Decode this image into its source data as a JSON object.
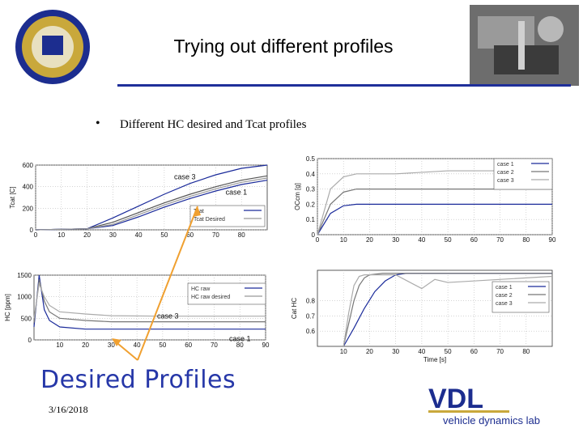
{
  "slide": {
    "title": "Trying out different profiles",
    "bullet": "Different HC desired and Tcat profiles",
    "date": "3/16/2018",
    "callout": "Desired Profiles",
    "logo_text": "VDL",
    "logo_subtext": "vehicle dynamics lab",
    "colors": {
      "accent": "#1f2f9a",
      "callout": "#2637a8",
      "arrow": "#f0a030",
      "case1": "#1a2a9a",
      "case2": "#777777",
      "case3": "#aaaaaa"
    }
  },
  "chart_data": [
    {
      "id": "tcat",
      "type": "line",
      "ylabel": "Tcat [C]",
      "xlim": [
        0,
        90
      ],
      "ylim": [
        0,
        600
      ],
      "xticks": [
        "0",
        "10",
        "20",
        "30",
        "40",
        "50",
        "60",
        "70",
        "80"
      ],
      "yticks": [
        "0",
        "200",
        "400",
        "600"
      ],
      "legend": [
        "Tcat",
        "Tcat Desired"
      ],
      "annotations": [
        {
          "text": "case 3",
          "x": 58,
          "y": 470
        },
        {
          "text": "case 1",
          "x": 78,
          "y": 325
        }
      ],
      "series": [
        {
          "name": "case 3",
          "color": "#1a2a9a",
          "x": [
            0,
            20,
            30,
            40,
            50,
            60,
            70,
            80,
            90
          ],
          "y": [
            0,
            10,
            110,
            220,
            330,
            430,
            510,
            570,
            600
          ]
        },
        {
          "name": "case 2",
          "color": "#555555",
          "x": [
            0,
            20,
            30,
            40,
            50,
            60,
            70,
            80,
            90
          ],
          "y": [
            0,
            10,
            70,
            160,
            250,
            330,
            400,
            460,
            500
          ]
        },
        {
          "name": "case 1",
          "color": "#1a2a9a",
          "x": [
            0,
            20,
            30,
            40,
            50,
            60,
            70,
            80,
            90
          ],
          "y": [
            0,
            10,
            40,
            120,
            210,
            290,
            360,
            420,
            460
          ]
        },
        {
          "name": "desired",
          "color": "#999999",
          "x": [
            0,
            20,
            30,
            40,
            50,
            60,
            70,
            80,
            90
          ],
          "y": [
            0,
            10,
            50,
            140,
            230,
            310,
            380,
            440,
            480
          ]
        }
      ]
    },
    {
      "id": "hc",
      "type": "line",
      "ylabel": "HC [ppm]",
      "xlim": [
        0,
        90
      ],
      "ylim": [
        0,
        1500
      ],
      "xticks": [
        "10",
        "20",
        "30",
        "40",
        "50",
        "60",
        "70",
        "80",
        "90"
      ],
      "yticks": [
        "0",
        "500",
        "1000",
        "1500"
      ],
      "legend": [
        "HC raw",
        "HC raw desired"
      ],
      "annotations": [
        {
          "text": "case 3",
          "x": 52,
          "y": 500
        },
        {
          "text": "case 1",
          "x": 80,
          "y": -30
        }
      ],
      "series": [
        {
          "name": "case 1",
          "color": "#1a2a9a",
          "x": [
            0,
            2,
            4,
            6,
            10,
            20,
            30,
            50,
            70,
            90
          ],
          "y": [
            300,
            1500,
            700,
            450,
            300,
            250,
            250,
            250,
            250,
            250
          ]
        },
        {
          "name": "case 2",
          "color": "#777777",
          "x": [
            0,
            2,
            4,
            6,
            10,
            20,
            30,
            50,
            70,
            90
          ],
          "y": [
            400,
            1400,
            900,
            650,
            500,
            450,
            420,
            420,
            420,
            420
          ]
        },
        {
          "name": "case 3",
          "color": "#aaaaaa",
          "x": [
            0,
            2,
            4,
            6,
            10,
            20,
            30,
            50,
            70,
            90
          ],
          "y": [
            500,
            1300,
            1000,
            800,
            650,
            600,
            560,
            550,
            550,
            550
          ]
        }
      ]
    },
    {
      "id": "ocm",
      "type": "line",
      "ylabel": "OCcm [g]",
      "xlim": [
        0,
        90
      ],
      "ylim": [
        0,
        0.5
      ],
      "xticks": [
        "0",
        "10",
        "20",
        "30",
        "40",
        "50",
        "60",
        "70",
        "80",
        "90"
      ],
      "yticks": [
        "0",
        "0.1",
        "0.2",
        "0.3",
        "0.4",
        "0.5"
      ],
      "legend": [
        "case 1",
        "case 2",
        "case 3"
      ],
      "series": [
        {
          "name": "case 1",
          "color": "#1a2a9a",
          "x": [
            0,
            5,
            10,
            15,
            20,
            30,
            90
          ],
          "y": [
            0,
            0.14,
            0.19,
            0.2,
            0.2,
            0.2,
            0.2
          ]
        },
        {
          "name": "case 2",
          "color": "#777777",
          "x": [
            0,
            5,
            10,
            15,
            20,
            30,
            90
          ],
          "y": [
            0,
            0.2,
            0.28,
            0.3,
            0.3,
            0.3,
            0.3
          ]
        },
        {
          "name": "case 3",
          "color": "#aaaaaa",
          "x": [
            0,
            5,
            10,
            15,
            20,
            30,
            50,
            90
          ],
          "y": [
            0,
            0.3,
            0.38,
            0.4,
            0.4,
            0.4,
            0.42,
            0.42
          ]
        }
      ]
    },
    {
      "id": "eff",
      "type": "line",
      "ylabel": "Cat HC",
      "xlabel": "Time [s]",
      "xlim": [
        0,
        90
      ],
      "ylim": [
        0.5,
        1
      ],
      "xticks": [
        "10",
        "20",
        "30",
        "40",
        "50",
        "60",
        "70",
        "80"
      ],
      "yticks": [
        "0.6",
        "0.7",
        "0.8"
      ],
      "legend": [
        "case 1",
        "case 2",
        "case 3"
      ],
      "series": [
        {
          "name": "case 1",
          "color": "#1a2a9a",
          "x": [
            10,
            14,
            18,
            22,
            26,
            30,
            34,
            90
          ],
          "y": [
            0.5,
            0.62,
            0.75,
            0.86,
            0.93,
            0.97,
            0.98,
            0.98
          ]
        },
        {
          "name": "case 2",
          "color": "#777777",
          "x": [
            10,
            12,
            14,
            16,
            18,
            20,
            25,
            90
          ],
          "y": [
            0.5,
            0.65,
            0.8,
            0.9,
            0.95,
            0.97,
            0.98,
            0.98
          ]
        },
        {
          "name": "case 3",
          "color": "#aaaaaa",
          "x": [
            10,
            12,
            14,
            16,
            18,
            20,
            30,
            40,
            45,
            50,
            90
          ],
          "y": [
            0.5,
            0.72,
            0.9,
            0.96,
            0.97,
            0.97,
            0.97,
            0.88,
            0.94,
            0.92,
            0.96
          ]
        }
      ]
    }
  ]
}
